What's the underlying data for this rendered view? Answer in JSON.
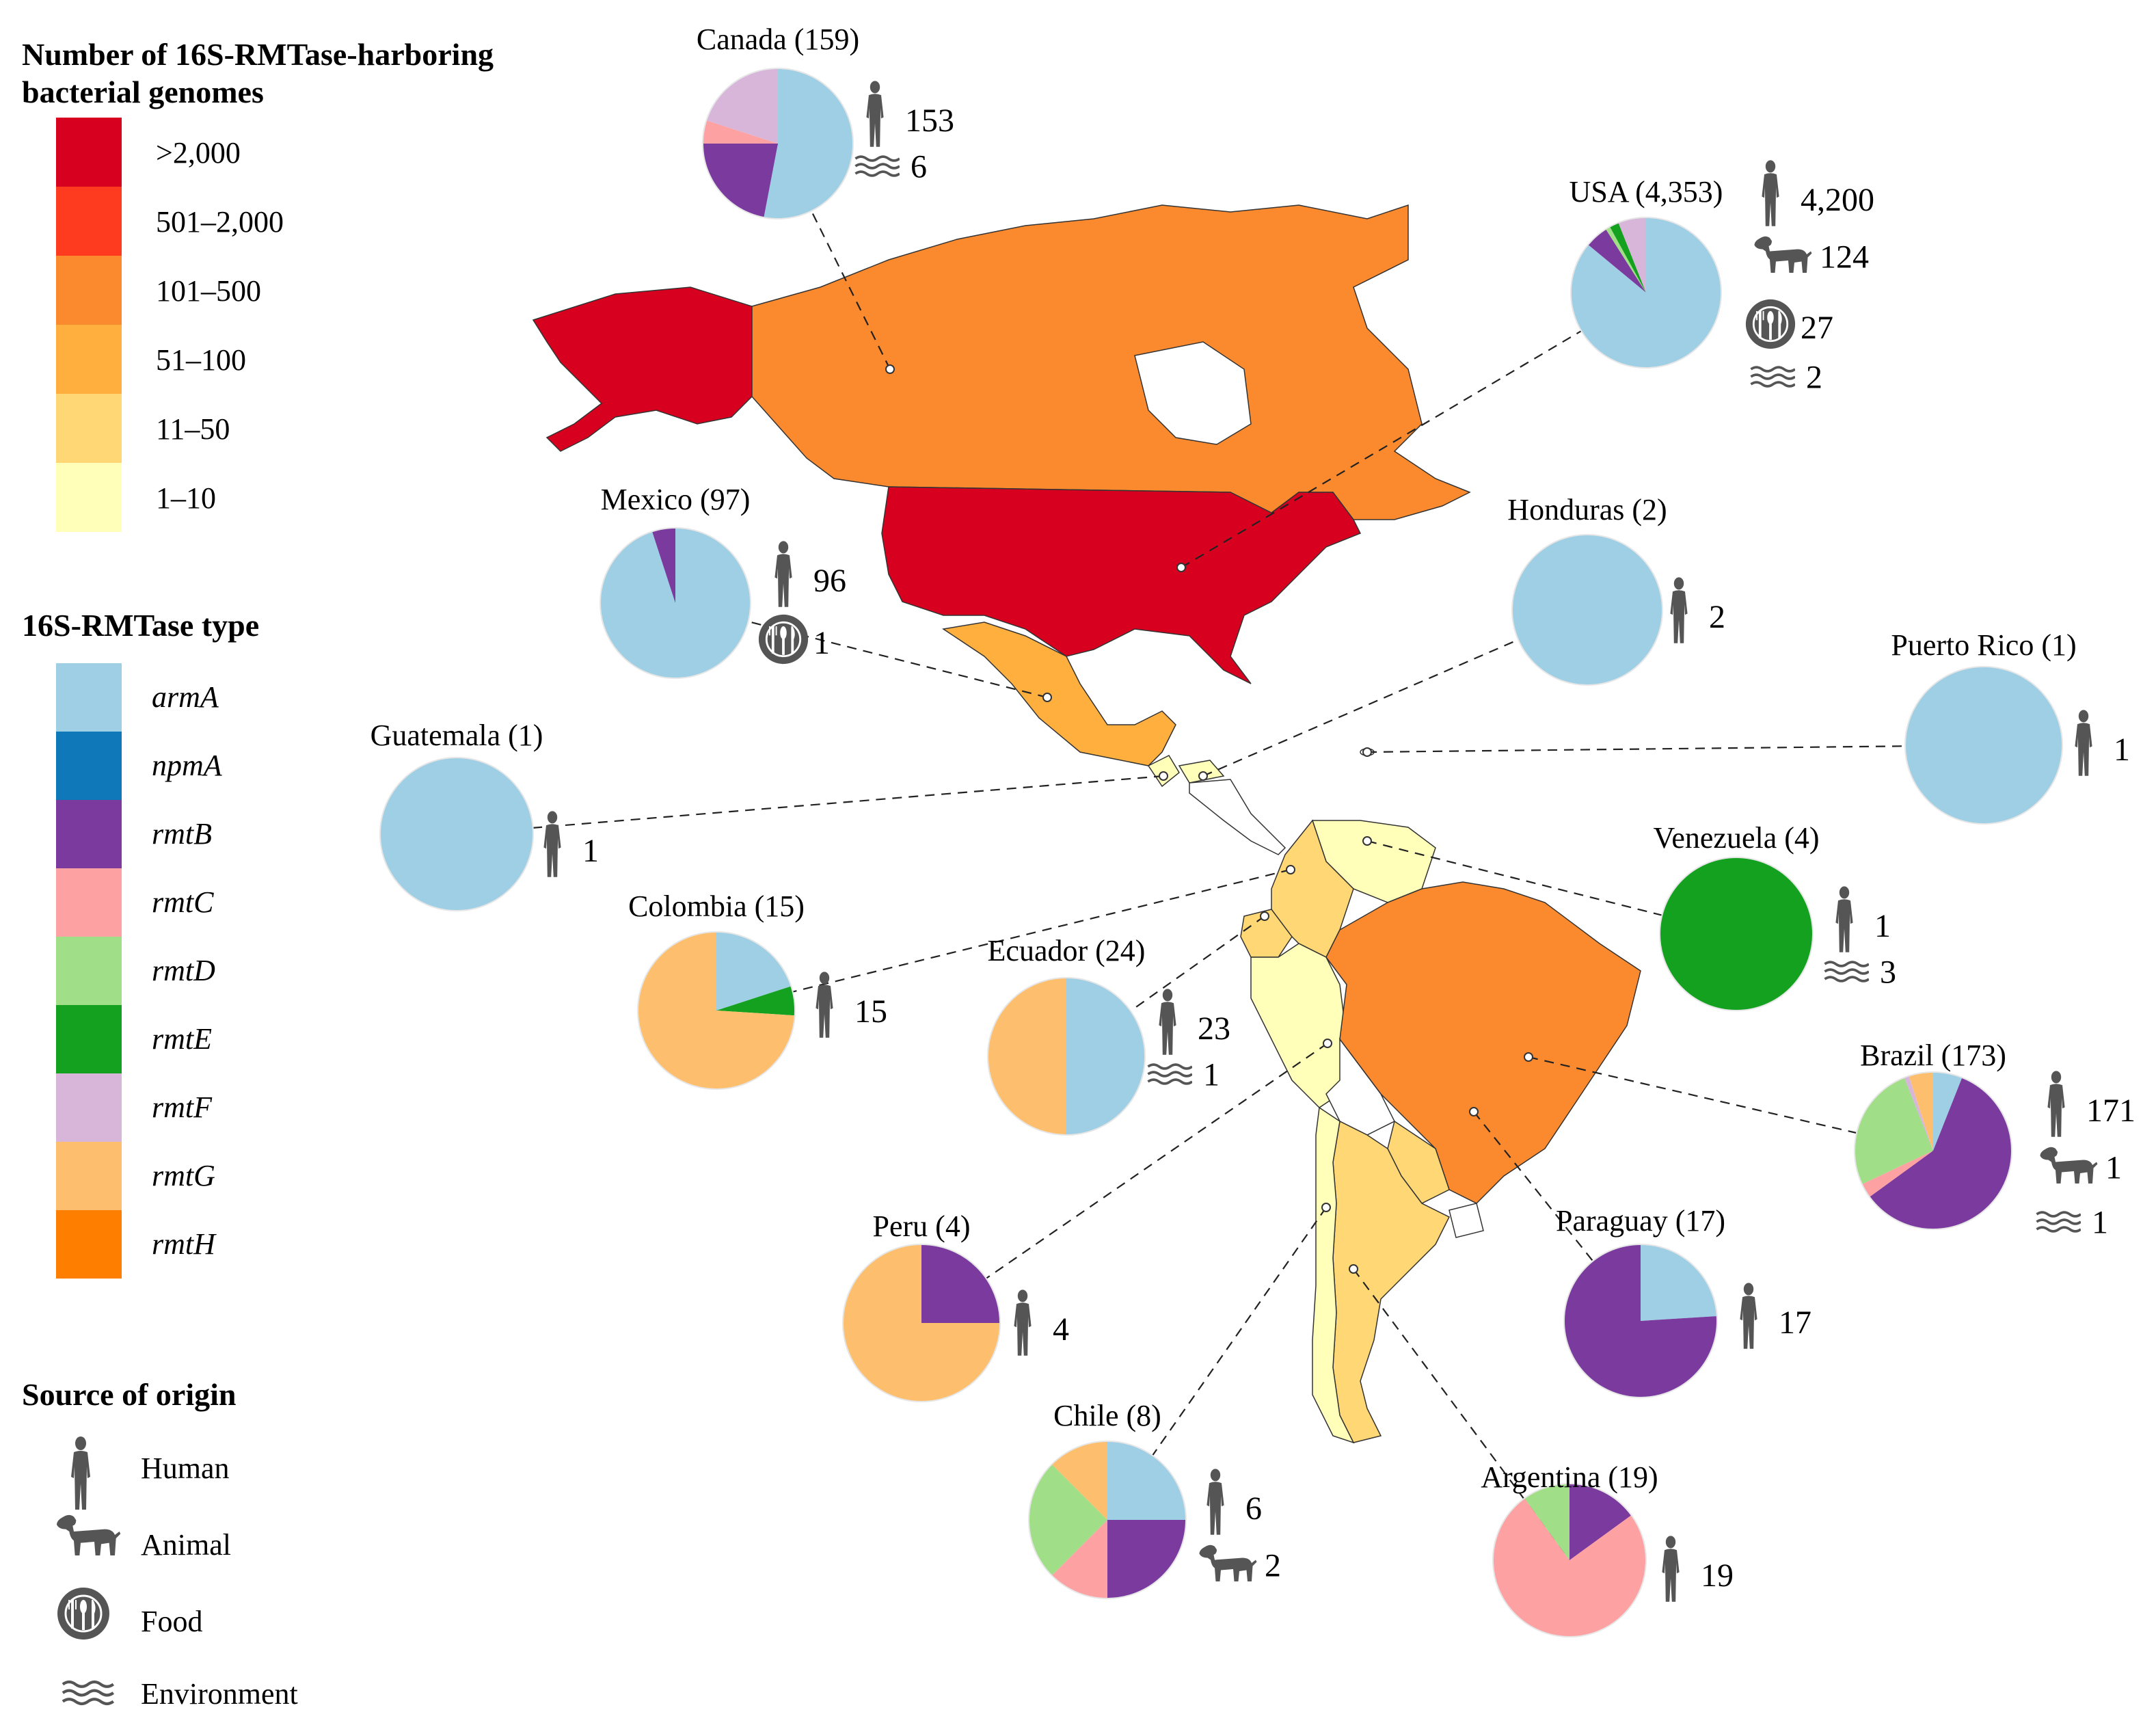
{
  "legend": {
    "count_title_line1": "Number of 16S-RMTase-harboring",
    "count_title_line2": "bacterial genomes",
    "count_bins": [
      {
        "label": ">2,000",
        "color": "#d7001f"
      },
      {
        "label": "501–2,000",
        "color": "#ff3b1f"
      },
      {
        "label": "101–500",
        "color": "#fb8a2e"
      },
      {
        "label": "51–100",
        "color": "#feaf3e"
      },
      {
        "label": "11–50",
        "color": "#ffd875"
      },
      {
        "label": "1–10",
        "color": "#ffffb9"
      }
    ],
    "type_title": "16S-RMTase type",
    "types": [
      {
        "key": "armA",
        "label": "armA",
        "color": "#9ecfe5"
      },
      {
        "key": "npmA",
        "label": "npmA",
        "color": "#0f78b9"
      },
      {
        "key": "rmtB",
        "label": "rmtB",
        "color": "#7a3a9e"
      },
      {
        "key": "rmtC",
        "label": "rmtC",
        "color": "#fea1a3"
      },
      {
        "key": "rmtD",
        "label": "rmtD",
        "color": "#a0de87"
      },
      {
        "key": "rmtE",
        "label": "rmtE",
        "color": "#13a11f"
      },
      {
        "key": "rmtF",
        "label": "rmtF",
        "color": "#d7b6d9"
      },
      {
        "key": "rmtG",
        "label": "rmtG",
        "color": "#fdbf6e"
      },
      {
        "key": "rmtH",
        "label": "rmtH",
        "color": "#fe7f00"
      }
    ],
    "source_title": "Source of origin",
    "sources": [
      {
        "key": "human",
        "label": "Human",
        "icon": "human-icon"
      },
      {
        "key": "animal",
        "label": "Animal",
        "icon": "dog-icon"
      },
      {
        "key": "food",
        "label": "Food",
        "icon": "food-icon"
      },
      {
        "key": "environment",
        "label": "Environment",
        "icon": "water-waves-icon"
      }
    ]
  },
  "map": {
    "land_color_base": "#ffffff",
    "country_fill": {
      "USA": ">2,000",
      "Alaska": ">2,000",
      "Canada": "101–500",
      "Brazil": "101–500",
      "Mexico": "51–100",
      "Colombia": "11–50",
      "Ecuador": "11–50",
      "Argentina": "11–50",
      "Paraguay": "11–50",
      "Venezuela": "1–10",
      "Peru": "1–10",
      "Chile": "1–10",
      "Guatemala": "1–10",
      "Honduras": "1–10"
    }
  },
  "countries": [
    {
      "name": "Canada",
      "label": "Canada (159)",
      "pie": [
        {
          "type": "armA",
          "value": 0.53
        },
        {
          "type": "rmtB",
          "value": 0.22
        },
        {
          "type": "rmtC",
          "value": 0.05
        },
        {
          "type": "rmtF",
          "value": 0.2
        }
      ],
      "sources": [
        {
          "icon": "human",
          "count": "153"
        },
        {
          "icon": "environment",
          "count": "6"
        }
      ]
    },
    {
      "name": "USA",
      "label": "USA (4,353)",
      "pie": [
        {
          "type": "armA",
          "value": 0.86
        },
        {
          "type": "rmtB",
          "value": 0.05
        },
        {
          "type": "rmtD",
          "value": 0.01
        },
        {
          "type": "rmtE",
          "value": 0.02
        },
        {
          "type": "rmtF",
          "value": 0.06
        }
      ],
      "sources": [
        {
          "icon": "human",
          "count": "4,200"
        },
        {
          "icon": "animal",
          "count": "124"
        },
        {
          "icon": "food",
          "count": "27"
        },
        {
          "icon": "environment",
          "count": "2"
        }
      ]
    },
    {
      "name": "Mexico",
      "label": "Mexico (97)",
      "pie": [
        {
          "type": "armA",
          "value": 0.95
        },
        {
          "type": "rmtB",
          "value": 0.05
        }
      ],
      "sources": [
        {
          "icon": "human",
          "count": "96"
        },
        {
          "icon": "food",
          "count": "1"
        }
      ]
    },
    {
      "name": "Honduras",
      "label": "Honduras (2)",
      "pie": [
        {
          "type": "armA",
          "value": 1.0
        }
      ],
      "sources": [
        {
          "icon": "human",
          "count": "2"
        }
      ]
    },
    {
      "name": "Puerto Rico",
      "label": "Puerto Rico (1)",
      "pie": [
        {
          "type": "armA",
          "value": 1.0
        }
      ],
      "sources": [
        {
          "icon": "human",
          "count": "1"
        }
      ]
    },
    {
      "name": "Guatemala",
      "label": "Guatemala (1)",
      "pie": [
        {
          "type": "armA",
          "value": 1.0
        }
      ],
      "sources": [
        {
          "icon": "human",
          "count": "1"
        }
      ]
    },
    {
      "name": "Colombia",
      "label": "Colombia (15)",
      "pie": [
        {
          "type": "armA",
          "value": 0.2
        },
        {
          "type": "rmtE",
          "value": 0.06
        },
        {
          "type": "rmtG",
          "value": 0.74
        }
      ],
      "sources": [
        {
          "icon": "human",
          "count": "15"
        }
      ]
    },
    {
      "name": "Ecuador",
      "label": "Ecuador (24)",
      "pie": [
        {
          "type": "armA",
          "value": 0.5
        },
        {
          "type": "rmtG",
          "value": 0.5
        }
      ],
      "sources": [
        {
          "icon": "human",
          "count": "23"
        },
        {
          "icon": "environment",
          "count": "1"
        }
      ]
    },
    {
      "name": "Venezuela",
      "label": "Venezuela (4)",
      "pie": [
        {
          "type": "rmtE",
          "value": 1.0
        }
      ],
      "sources": [
        {
          "icon": "human",
          "count": "1"
        },
        {
          "icon": "environment",
          "count": "3"
        }
      ]
    },
    {
      "name": "Brazil",
      "label": "Brazil (173)",
      "pie": [
        {
          "type": "armA",
          "value": 0.06
        },
        {
          "type": "rmtB",
          "value": 0.59
        },
        {
          "type": "rmtC",
          "value": 0.03
        },
        {
          "type": "rmtD",
          "value": 0.26
        },
        {
          "type": "rmtF",
          "value": 0.01
        },
        {
          "type": "rmtG",
          "value": 0.05
        }
      ],
      "sources": [
        {
          "icon": "human",
          "count": "171"
        },
        {
          "icon": "animal",
          "count": "1"
        },
        {
          "icon": "environment",
          "count": "1"
        }
      ]
    },
    {
      "name": "Peru",
      "label": "Peru (4)",
      "pie": [
        {
          "type": "rmtB",
          "value": 0.25
        },
        {
          "type": "rmtG",
          "value": 0.75
        }
      ],
      "sources": [
        {
          "icon": "human",
          "count": "4"
        }
      ]
    },
    {
      "name": "Paraguay",
      "label": "Paraguay (17)",
      "pie": [
        {
          "type": "armA",
          "value": 0.24
        },
        {
          "type": "rmtB",
          "value": 0.76
        }
      ],
      "sources": [
        {
          "icon": "human",
          "count": "17"
        }
      ]
    },
    {
      "name": "Chile",
      "label": "Chile (8)",
      "pie": [
        {
          "type": "armA",
          "value": 0.25
        },
        {
          "type": "rmtB",
          "value": 0.25
        },
        {
          "type": "rmtC",
          "value": 0.125
        },
        {
          "type": "rmtD",
          "value": 0.25
        },
        {
          "type": "rmtG",
          "value": 0.125
        }
      ],
      "sources": [
        {
          "icon": "human",
          "count": "6"
        },
        {
          "icon": "animal",
          "count": "2"
        }
      ]
    },
    {
      "name": "Argentina",
      "label": "Argentina (19)",
      "pie": [
        {
          "type": "rmtB",
          "value": 0.15
        },
        {
          "type": "rmtC",
          "value": 0.75
        },
        {
          "type": "rmtD",
          "value": 0.1
        }
      ],
      "sources": [
        {
          "icon": "human",
          "count": "19"
        }
      ]
    }
  ]
}
